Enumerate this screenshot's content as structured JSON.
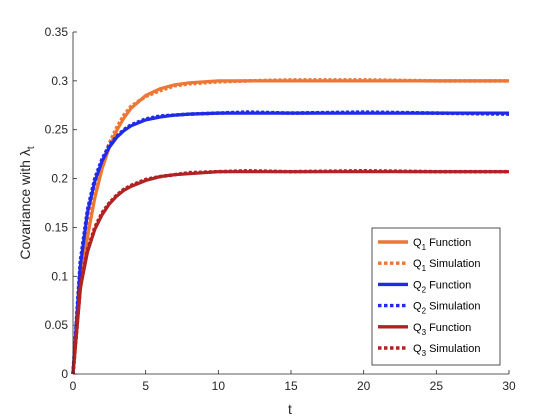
{
  "chart_data": {
    "type": "line",
    "xlabel": "t",
    "ylabel_main": "Covariance with ",
    "ylabel_symbol": "λ",
    "ylabel_sub": "t",
    "xlim": [
      0,
      30
    ],
    "ylim": [
      0,
      0.35
    ],
    "xticks": [
      0,
      5,
      10,
      15,
      20,
      25,
      30
    ],
    "xtick_labels": [
      "0",
      "5",
      "10",
      "15",
      "20",
      "25",
      "30"
    ],
    "yticks": [
      0,
      0.05,
      0.1,
      0.15,
      0.2,
      0.25,
      0.3,
      0.35
    ],
    "ytick_labels": [
      "0",
      "0.05",
      "0.1",
      "0.15",
      "0.2",
      "0.25",
      "0.3",
      "0.35"
    ],
    "grid": false,
    "legend_position": "bottom-right",
    "series": [
      {
        "name": "Q1 Function",
        "legend_main": "Q",
        "legend_sub": "1",
        "legend_rest": " Function",
        "style": "solid",
        "color": "#EE7733",
        "x": [
          0,
          0.5,
          1,
          1.5,
          2,
          2.5,
          3,
          3.5,
          4,
          5,
          6,
          7,
          8,
          10,
          12,
          15,
          20,
          25,
          30
        ],
        "y": [
          0,
          0.085,
          0.14,
          0.18,
          0.21,
          0.232,
          0.249,
          0.262,
          0.272,
          0.285,
          0.292,
          0.296,
          0.298,
          0.3,
          0.3,
          0.3,
          0.3,
          0.3,
          0.3
        ]
      },
      {
        "name": "Q1 Simulation",
        "legend_main": "Q",
        "legend_sub": "1",
        "legend_rest": " Simulation",
        "style": "dotted",
        "color": "#EE7733",
        "x": [
          0,
          0.5,
          1,
          1.5,
          2,
          2.5,
          3,
          3.5,
          4,
          5,
          6,
          7,
          8,
          10,
          12,
          15,
          20,
          25,
          30
        ],
        "y": [
          0,
          0.09,
          0.145,
          0.185,
          0.215,
          0.236,
          0.252,
          0.265,
          0.274,
          0.284,
          0.29,
          0.295,
          0.297,
          0.299,
          0.3,
          0.301,
          0.301,
          0.3,
          0.3
        ]
      },
      {
        "name": "Q2 Function",
        "legend_main": "Q",
        "legend_sub": "2",
        "legend_rest": " Function",
        "style": "solid",
        "color": "#1F2BE8",
        "x": [
          0,
          0.5,
          1,
          1.5,
          2,
          2.5,
          3,
          3.5,
          4,
          5,
          6,
          7,
          8,
          10,
          12,
          15,
          20,
          25,
          30
        ],
        "y": [
          0,
          0.11,
          0.165,
          0.197,
          0.218,
          0.232,
          0.242,
          0.249,
          0.254,
          0.26,
          0.263,
          0.265,
          0.266,
          0.267,
          0.267,
          0.267,
          0.267,
          0.267,
          0.267
        ]
      },
      {
        "name": "Q2 Simulation",
        "legend_main": "Q",
        "legend_sub": "2",
        "legend_rest": " Simulation",
        "style": "dotted",
        "color": "#1F2BE8",
        "x": [
          0,
          0.5,
          1,
          1.5,
          2,
          2.5,
          3,
          3.5,
          4,
          5,
          6,
          7,
          8,
          10,
          12,
          15,
          20,
          25,
          30
        ],
        "y": [
          0,
          0.115,
          0.168,
          0.2,
          0.22,
          0.234,
          0.243,
          0.25,
          0.255,
          0.261,
          0.264,
          0.265,
          0.266,
          0.267,
          0.268,
          0.267,
          0.268,
          0.267,
          0.266
        ]
      },
      {
        "name": "Q3 Function",
        "legend_main": "Q",
        "legend_sub": "3",
        "legend_rest": " Function",
        "style": "solid",
        "color": "#B22222",
        "x": [
          0,
          0.5,
          1,
          1.5,
          2,
          2.5,
          3,
          3.5,
          4,
          5,
          6,
          7,
          8,
          10,
          12,
          15,
          20,
          25,
          30
        ],
        "y": [
          0,
          0.088,
          0.125,
          0.148,
          0.163,
          0.174,
          0.182,
          0.188,
          0.192,
          0.198,
          0.202,
          0.204,
          0.205,
          0.207,
          0.207,
          0.207,
          0.207,
          0.207,
          0.207
        ]
      },
      {
        "name": "Q3 Simulation",
        "legend_main": "Q",
        "legend_sub": "3",
        "legend_rest": " Simulation",
        "style": "dotted",
        "color": "#B22222",
        "x": [
          0,
          0.5,
          1,
          1.5,
          2,
          2.5,
          3,
          3.5,
          4,
          5,
          6,
          7,
          8,
          10,
          12,
          15,
          20,
          25,
          30
        ],
        "y": [
          0,
          0.09,
          0.127,
          0.15,
          0.165,
          0.175,
          0.183,
          0.189,
          0.193,
          0.199,
          0.202,
          0.204,
          0.206,
          0.207,
          0.208,
          0.207,
          0.208,
          0.207,
          0.207
        ]
      }
    ]
  }
}
